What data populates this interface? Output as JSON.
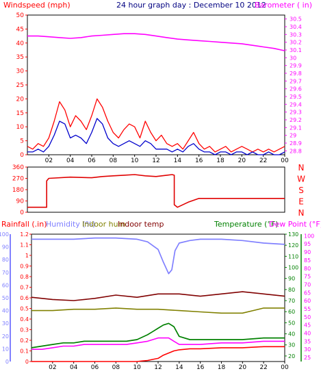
{
  "header": {
    "windspeed": "Windspeed (mph)",
    "title": "24 hour graph day : December 10 2012",
    "barometer": "Barometer ( in)"
  },
  "mid_header": {
    "rainfall": "Rainfall (.in)",
    "humidity": "Humidity (%)",
    "indoor_hum": "Indoor hum",
    "indoor_temp": "Indoor temp",
    "temperature": "Temperature (°F)",
    "dew_point": "Dew Point (°F)"
  },
  "compass": [
    "N",
    "W",
    "S",
    "E",
    "N"
  ],
  "colors": {
    "windspeed": "#ff0000",
    "wind_avg": "#0000cc",
    "barometer": "#ff00ff",
    "direction": "#e00000",
    "rainfall": "#ff0000",
    "humidity": "#8080ff",
    "indoor_hum": "#808000",
    "indoor_temp": "#800000",
    "temperature": "#008000",
    "dew_point": "#ff00ff",
    "background": "#ffffff"
  },
  "chart_data": [
    {
      "type": "line",
      "xticks": [
        "02",
        "04",
        "06",
        "08",
        "10",
        "12",
        "14",
        "16",
        "18",
        "20",
        "22",
        "00"
      ],
      "left_axis": {
        "ticks": [
          0,
          5,
          10,
          15,
          20,
          25,
          30,
          35,
          40,
          45,
          50
        ],
        "ylim": [
          0,
          50
        ]
      },
      "right_axis": {
        "ticks": [
          "28.8",
          "28.9",
          "29",
          "29.1",
          "29.2",
          "29.3",
          "29.4",
          "29.5",
          "29.6",
          "29.7",
          "29.8",
          "29.9",
          "30",
          "30.1",
          "30.2",
          "30.3",
          "30.4",
          "30.5"
        ],
        "ylim": [
          28.75,
          30.55
        ]
      },
      "series": [
        {
          "name": "Windspeed (mph)",
          "axis": "left",
          "x": [
            0,
            0.5,
            1,
            1.5,
            2,
            2.5,
            3,
            3.5,
            4,
            4.5,
            5,
            5.5,
            6,
            6.5,
            7,
            7.5,
            8,
            8.5,
            9,
            9.5,
            10,
            10.5,
            11,
            11.5,
            12,
            12.5,
            13,
            13.5,
            14,
            14.5,
            15,
            15.5,
            16,
            16.5,
            17,
            17.5,
            18,
            18.5,
            19,
            19.5,
            20,
            20.5,
            21,
            21.5,
            22,
            22.5,
            23,
            23.5,
            24
          ],
          "y": [
            3,
            2,
            4,
            3,
            6,
            12,
            19,
            16,
            10,
            14,
            12,
            9,
            14,
            20,
            17,
            12,
            8,
            6,
            9,
            11,
            10,
            6,
            12,
            8,
            5,
            7,
            4,
            3,
            4,
            2,
            5,
            8,
            4,
            2,
            3,
            1,
            2,
            3,
            1,
            2,
            3,
            2,
            1,
            2,
            1,
            2,
            1,
            2,
            3
          ]
        },
        {
          "name": "Wind avg (mph)",
          "axis": "left",
          "x": [
            0,
            0.5,
            1,
            1.5,
            2,
            2.5,
            3,
            3.5,
            4,
            4.5,
            5,
            5.5,
            6,
            6.5,
            7,
            7.5,
            8,
            8.5,
            9,
            9.5,
            10,
            10.5,
            11,
            11.5,
            12,
            12.5,
            13,
            13.5,
            14,
            14.5,
            15,
            15.5,
            16,
            16.5,
            17,
            17.5,
            18,
            18.5,
            19,
            19.5,
            20,
            20.5,
            21,
            21.5,
            22,
            22.5,
            23,
            23.5,
            24
          ],
          "y": [
            1,
            1,
            2,
            1,
            3,
            7,
            12,
            11,
            6,
            7,
            6,
            4,
            8,
            13,
            11,
            6,
            4,
            3,
            4,
            5,
            4,
            3,
            5,
            4,
            2,
            2,
            2,
            1,
            2,
            1,
            3,
            4,
            2,
            1,
            1,
            0,
            1,
            1,
            0,
            1,
            1,
            0,
            1,
            0,
            0,
            1,
            0,
            0,
            1
          ]
        },
        {
          "name": "Barometer ( in)",
          "axis": "right",
          "x": [
            0,
            1,
            2,
            3,
            4,
            5,
            6,
            7,
            8,
            9,
            10,
            11,
            12,
            13,
            14,
            15,
            16,
            17,
            18,
            19,
            20,
            21,
            22,
            23,
            24
          ],
          "y": [
            30.28,
            30.28,
            30.27,
            30.26,
            30.25,
            30.26,
            30.28,
            30.29,
            30.3,
            30.31,
            30.31,
            30.3,
            30.28,
            30.26,
            30.24,
            30.23,
            30.22,
            30.21,
            30.2,
            30.19,
            30.18,
            30.16,
            30.14,
            30.12,
            30.09
          ]
        }
      ]
    },
    {
      "type": "line",
      "xticks": [],
      "left_axis": {
        "ticks": [
          0,
          90,
          180,
          270,
          360
        ],
        "ylim": [
          0,
          360
        ]
      },
      "right_axis": {
        "ticks": [
          "N",
          "W",
          "S",
          "E",
          "N"
        ]
      },
      "series": [
        {
          "name": "Wind direction",
          "axis": "left",
          "x": [
            0,
            1.8,
            1.8,
            2,
            4,
            6,
            7,
            8,
            9,
            10,
            11,
            12,
            13,
            13.5,
            13.7,
            13.7,
            14,
            15,
            16,
            24
          ],
          "y": [
            40,
            40,
            250,
            270,
            280,
            275,
            285,
            290,
            295,
            300,
            290,
            285,
            295,
            300,
            295,
            60,
            40,
            80,
            110,
            110
          ]
        }
      ]
    },
    {
      "type": "line",
      "xticks": [
        "02",
        "04",
        "06",
        "08",
        "10",
        "12",
        "14",
        "16",
        "18",
        "20",
        "22",
        "00"
      ],
      "left_axis": {
        "ticks": [
          "0",
          "0.1",
          "0.2",
          "0.3",
          "0.4",
          "0.5",
          "0.6",
          "0.7",
          "0.8",
          "0.9",
          "1",
          "1.1",
          "1.2"
        ],
        "ylim": [
          0,
          1.2
        ]
      },
      "humidity_axis": {
        "ticks": [
          0,
          10,
          20,
          30,
          40,
          50,
          60,
          70,
          80,
          90,
          100
        ],
        "ylim": [
          0,
          100
        ]
      },
      "right_axis1": {
        "ticks": [
          20,
          30,
          40,
          50,
          60,
          70,
          80,
          90,
          100,
          110,
          120,
          130
        ],
        "ylim": [
          15,
          130
        ]
      },
      "right_axis2": {
        "ticks": [
          25,
          30,
          35,
          40,
          45,
          50,
          55,
          60,
          65,
          70,
          75,
          80,
          85,
          90,
          95,
          100
        ],
        "ylim": [
          22.5,
          101
        ]
      },
      "series": [
        {
          "name": "Rainfall (.in)",
          "axis": "left",
          "x": [
            0,
            10,
            10.5,
            11,
            11.5,
            12,
            12.5,
            13,
            13.5,
            14,
            15,
            16,
            18,
            20,
            22,
            24
          ],
          "y": [
            0,
            0,
            0.005,
            0.01,
            0.02,
            0.03,
            0.06,
            0.08,
            0.1,
            0.11,
            0.12,
            0.12,
            0.13,
            0.13,
            0.14,
            0.14
          ]
        },
        {
          "name": "Humidity (%)",
          "axis": "humidity",
          "x": [
            0,
            2,
            4,
            6,
            8,
            10,
            11,
            12,
            12.5,
            13,
            13.3,
            13.6,
            14,
            15,
            16,
            18,
            20,
            22,
            24
          ],
          "y": [
            96,
            96,
            96,
            97,
            97,
            96,
            94,
            88,
            78,
            69,
            72,
            87,
            93,
            95,
            96,
            96,
            95,
            93,
            92
          ]
        },
        {
          "name": "Indoor hum",
          "axis": "humidity",
          "x": [
            0,
            2,
            4,
            6,
            8,
            10,
            12,
            14,
            16,
            18,
            20,
            21,
            22,
            24
          ],
          "y": [
            40,
            40,
            41,
            41,
            42,
            41,
            41,
            40,
            39,
            38,
            38,
            40,
            42,
            42
          ]
        },
        {
          "name": "Indoor temp",
          "axis": "right1",
          "x": [
            0,
            2,
            4,
            6,
            8,
            10,
            12,
            14,
            16,
            18,
            20,
            22,
            24
          ],
          "y": [
            73,
            71,
            70,
            72,
            75,
            73,
            76,
            76,
            74,
            76,
            78,
            76,
            74
          ]
        },
        {
          "name": "Temperature (°F)",
          "axis": "right2",
          "x": [
            0,
            1,
            2,
            3,
            4,
            5,
            6,
            7,
            8,
            9,
            10,
            11,
            11.5,
            12,
            12.5,
            13,
            13.5,
            14,
            15,
            16,
            18,
            20,
            22,
            24
          ],
          "y": [
            31,
            32,
            33,
            34,
            34,
            35,
            35,
            35,
            35,
            35,
            36,
            39,
            41,
            43,
            45,
            46,
            44,
            38,
            36,
            36,
            36,
            36,
            37,
            37
          ]
        },
        {
          "name": "Dew Point (°F)",
          "axis": "right2",
          "x": [
            0,
            1,
            2,
            3,
            4,
            5,
            6,
            7,
            8,
            9,
            10,
            11,
            12,
            13,
            13.5,
            14,
            15,
            16,
            18,
            20,
            22,
            24
          ],
          "y": [
            30,
            30,
            31,
            32,
            32,
            33,
            33,
            33,
            33,
            33,
            34,
            35,
            37,
            37,
            35,
            33,
            33,
            33,
            34,
            34,
            35,
            35
          ]
        }
      ]
    }
  ]
}
